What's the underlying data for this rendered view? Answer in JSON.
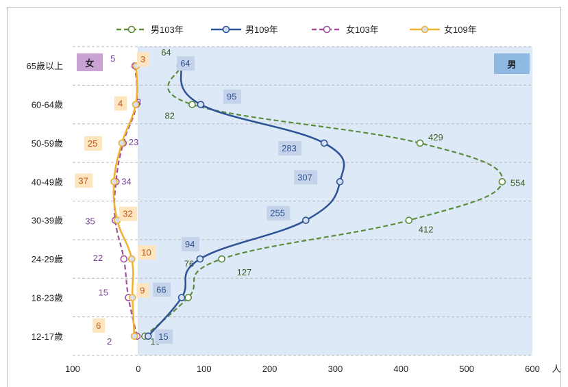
{
  "chart_data": {
    "type": "line",
    "orientation": "horizontal",
    "categories": [
      "12-17歲",
      "18-23歲",
      "24-29歲",
      "30-39歲",
      "40-49歲",
      "50-59歲",
      "60-64歲",
      "65歲以上"
    ],
    "series": [
      {
        "name": "男103年",
        "side": "男",
        "values": [
          10,
          76,
          127,
          412,
          554,
          429,
          82,
          64
        ],
        "color": "#5b8c3e",
        "dash": true,
        "label_bg": "none"
      },
      {
        "name": "男109年",
        "side": "男",
        "values": [
          15,
          66,
          94,
          255,
          307,
          283,
          95,
          64
        ],
        "color": "#2f5597",
        "dash": false,
        "label_bg": "#c5d3ea"
      },
      {
        "name": "女103年",
        "side": "女",
        "values": [
          2,
          15,
          22,
          35,
          34,
          23,
          3,
          5
        ],
        "color": "#a0509a",
        "dash": true,
        "label_bg": "none"
      },
      {
        "name": "女109年",
        "side": "女",
        "values": [
          6,
          9,
          10,
          32,
          37,
          25,
          4,
          3
        ],
        "color": "#f0b232",
        "dash": false,
        "label_bg": "#fde6bf"
      }
    ],
    "x_tick_labels": [
      "100",
      "0",
      "100",
      "200",
      "300",
      "400",
      "500",
      "600"
    ],
    "xlim": [
      -100,
      600
    ],
    "x_unit": "人",
    "region_labels": {
      "male": "男",
      "female": "女"
    },
    "region_colors": {
      "male": "#dde9f6",
      "male_badge": "#8fb8e3",
      "female_badge": "#c9a3d3"
    },
    "legend_position": "top",
    "grid": "horizontal dashed"
  }
}
